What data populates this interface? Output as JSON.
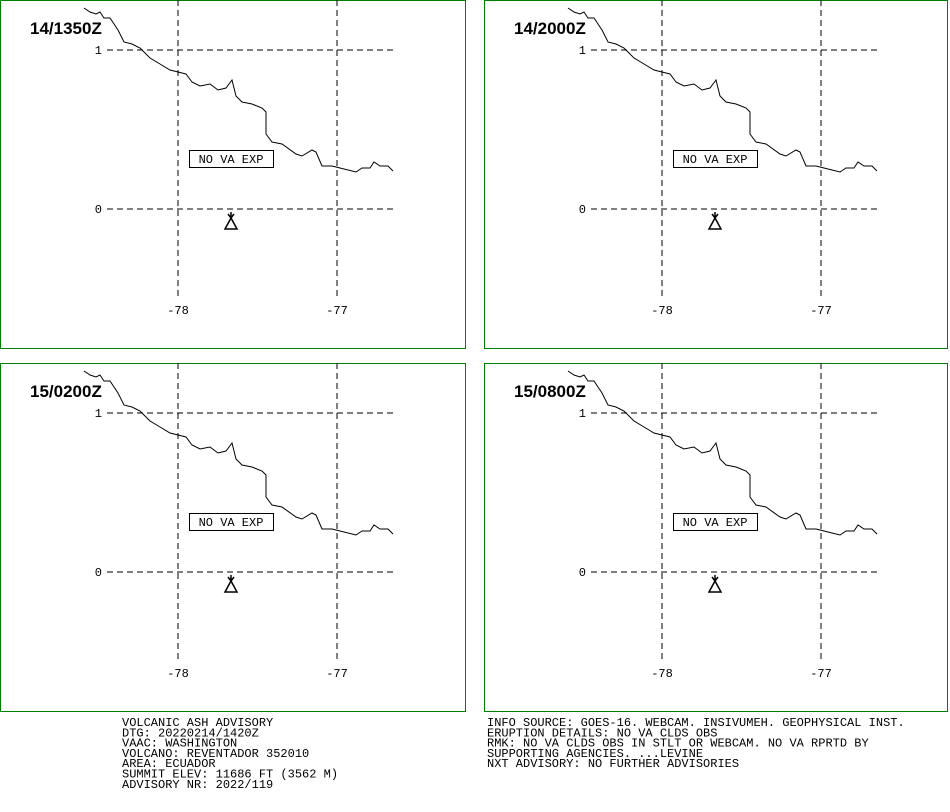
{
  "panels": [
    {
      "valid_time": "14/1350Z",
      "lat_labels": [
        "1",
        "0"
      ],
      "lon_labels": [
        "-78",
        "-77"
      ],
      "status": "NO VA EXP"
    },
    {
      "valid_time": "14/2000Z",
      "lat_labels": [
        "1",
        "0"
      ],
      "lon_labels": [
        "-78",
        "-77"
      ],
      "status": "NO VA EXP"
    },
    {
      "valid_time": "15/0200Z",
      "lat_labels": [
        "1",
        "0"
      ],
      "lon_labels": [
        "-78",
        "-77"
      ],
      "status": "NO VA EXP"
    },
    {
      "valid_time": "15/0800Z",
      "lat_labels": [
        "1",
        "0"
      ],
      "lon_labels": [
        "-78",
        "-77"
      ],
      "status": "NO VA EXP"
    }
  ],
  "advisory": {
    "left_lines": [
      "VOLCANIC ASH ADVISORY",
      "DTG: 20220214/1420Z",
      "VAAC: WASHINGTON",
      "VOLCANO: REVENTADOR 352010",
      "AREA: ECUADOR",
      "SUMMIT ELEV: 11686 FT (3562 M)",
      "ADVISORY NR: 2022/119"
    ],
    "right_lines": [
      "INFO SOURCE: GOES-16. WEBCAM. INSIVUMEH. GEOPHYSICAL INST.",
      "ERUPTION DETAILS: NO VA CLDS OBS",
      "RMK: NO VA CLDS OBS IN STLT OR WEBCAM. NO VA RPRTD BY",
      "SUPPORTING AGENCIES. ...LEVINE",
      "NXT ADVISORY: NO FURTHER ADVISORIES"
    ]
  }
}
